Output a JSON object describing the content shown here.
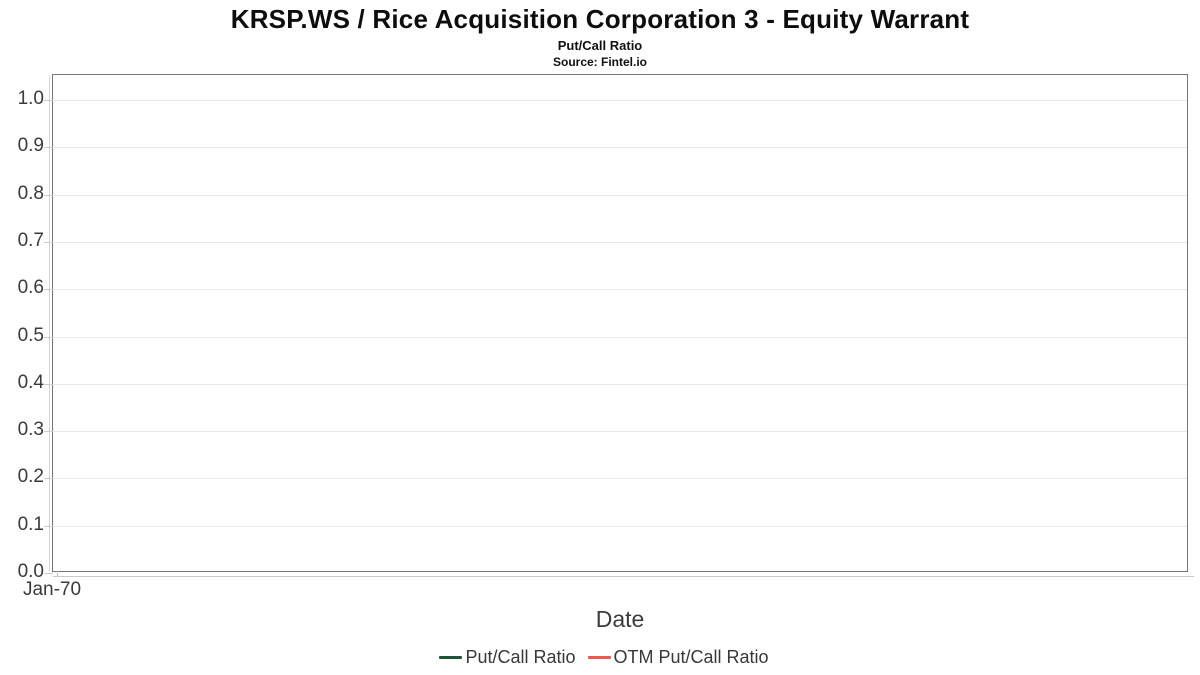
{
  "header": {
    "title": "KRSP.WS / Rice Acquisition Corporation 3 - Equity Warrant",
    "subtitle": "Put/Call Ratio",
    "source": "Source: Fintel.io"
  },
  "chart_data": {
    "type": "line",
    "title": "KRSP.WS / Rice Acquisition Corporation 3 - Equity Warrant",
    "subtitle": "Put/Call Ratio",
    "source": "Source: Fintel.io",
    "xlabel": "Date",
    "ylabel": "",
    "ylim": [
      0.0,
      1.05
    ],
    "y_ticks": [
      "1.0",
      "0.9",
      "0.8",
      "0.7",
      "0.6",
      "0.5",
      "0.4",
      "0.3",
      "0.2",
      "0.1",
      "0.0"
    ],
    "x_ticks": [
      "Jan-70"
    ],
    "grid": "horizontal",
    "legend_position": "bottom",
    "series": [
      {
        "name": "Put/Call Ratio",
        "color": "#1e5537",
        "x": [],
        "values": []
      },
      {
        "name": "OTM Put/Call Ratio",
        "color": "#f4564e",
        "x": [],
        "values": []
      }
    ]
  },
  "colors": {
    "plot_border": "#757575",
    "gridline": "#e8e8e8",
    "tick": "#cccccc",
    "tick_label": "#3a3a3a"
  }
}
